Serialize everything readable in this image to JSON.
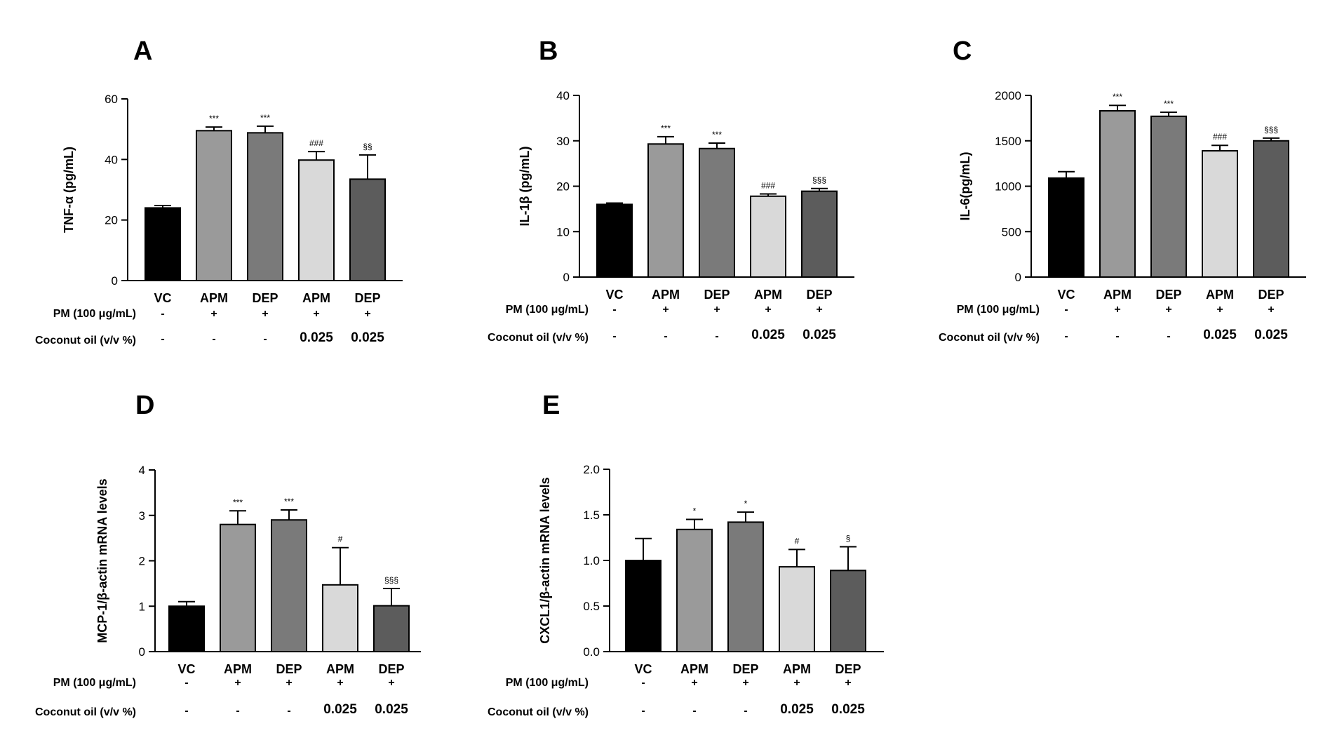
{
  "figure": {
    "row_labels": {
      "pm": "PM (100 μg/mL)",
      "coconut": "Coconut oil (v/v %)"
    },
    "row_values": {
      "pm": [
        "-",
        "+",
        "+",
        "+",
        "+"
      ],
      "coconut": [
        "-",
        "-",
        "-",
        "0.025",
        "0.025"
      ]
    },
    "bar_colors": [
      "#000000",
      "#9a9a9a",
      "#7a7a7a",
      "#d9d9d9",
      "#5c5c5c"
    ]
  },
  "chart_data": [
    {
      "panel": "A",
      "type": "bar",
      "categories": [
        "VC",
        "APM",
        "DEP",
        "APM",
        "DEP"
      ],
      "values": [
        24,
        49.5,
        48.8,
        39.8,
        33.5
      ],
      "errors": [
        0.8,
        1.2,
        2.2,
        2.8,
        8
      ],
      "significance": [
        "",
        "***",
        "***",
        "###",
        "§§"
      ],
      "ylabel": "TNF-α (pg/mL)",
      "ylim": [
        0,
        60
      ],
      "yticks": [
        "0",
        "20",
        "40",
        "60"
      ]
    },
    {
      "panel": "B",
      "type": "bar",
      "categories": [
        "VC",
        "APM",
        "DEP",
        "APM",
        "DEP"
      ],
      "values": [
        16,
        29.3,
        28.3,
        17.8,
        18.9
      ],
      "errors": [
        0.3,
        1.6,
        1.2,
        0.5,
        0.6
      ],
      "significance": [
        "",
        "***",
        "***",
        "###",
        "§§§"
      ],
      "ylabel": "IL-1β (pg/mL)",
      "ylim": [
        0,
        40
      ],
      "yticks": [
        "0",
        "10",
        "20",
        "30",
        "40"
      ]
    },
    {
      "panel": "C",
      "type": "bar",
      "categories": [
        "VC",
        "APM",
        "DEP",
        "APM",
        "DEP"
      ],
      "values": [
        1090,
        1830,
        1770,
        1390,
        1500
      ],
      "errors": [
        70,
        60,
        45,
        60,
        30
      ],
      "significance": [
        "",
        "***",
        "***",
        "###",
        "§§§"
      ],
      "ylabel": "IL-6(pg/mL)",
      "ylim": [
        0,
        2000
      ],
      "yticks": [
        "0",
        "500",
        "1000",
        "1500",
        "2000"
      ]
    },
    {
      "panel": "D",
      "type": "bar",
      "categories": [
        "VC",
        "APM",
        "DEP",
        "APM",
        "DEP"
      ],
      "values": [
        1,
        2.8,
        2.9,
        1.47,
        1.01
      ],
      "errors": [
        0.1,
        0.3,
        0.22,
        0.82,
        0.38
      ],
      "significance": [
        "",
        "***",
        "***",
        "#",
        "§§§"
      ],
      "ylabel": "MCP-1/β-actin mRNA levels",
      "ylim": [
        0,
        4
      ],
      "yticks": [
        "0",
        "1",
        "2",
        "3",
        "4"
      ]
    },
    {
      "panel": "E",
      "type": "bar",
      "categories": [
        "VC",
        "APM",
        "DEP",
        "APM",
        "DEP"
      ],
      "values": [
        1.0,
        1.34,
        1.42,
        0.93,
        0.89
      ],
      "errors": [
        0.24,
        0.11,
        0.11,
        0.19,
        0.26
      ],
      "significance": [
        "",
        "*",
        "*",
        "#",
        "§"
      ],
      "ylabel": "CXCL1/β-actin mRNA levels",
      "ylim": [
        0,
        2
      ],
      "yticks": [
        "0.0",
        "0.5",
        "1.0",
        "1.5",
        "2.0"
      ]
    }
  ]
}
